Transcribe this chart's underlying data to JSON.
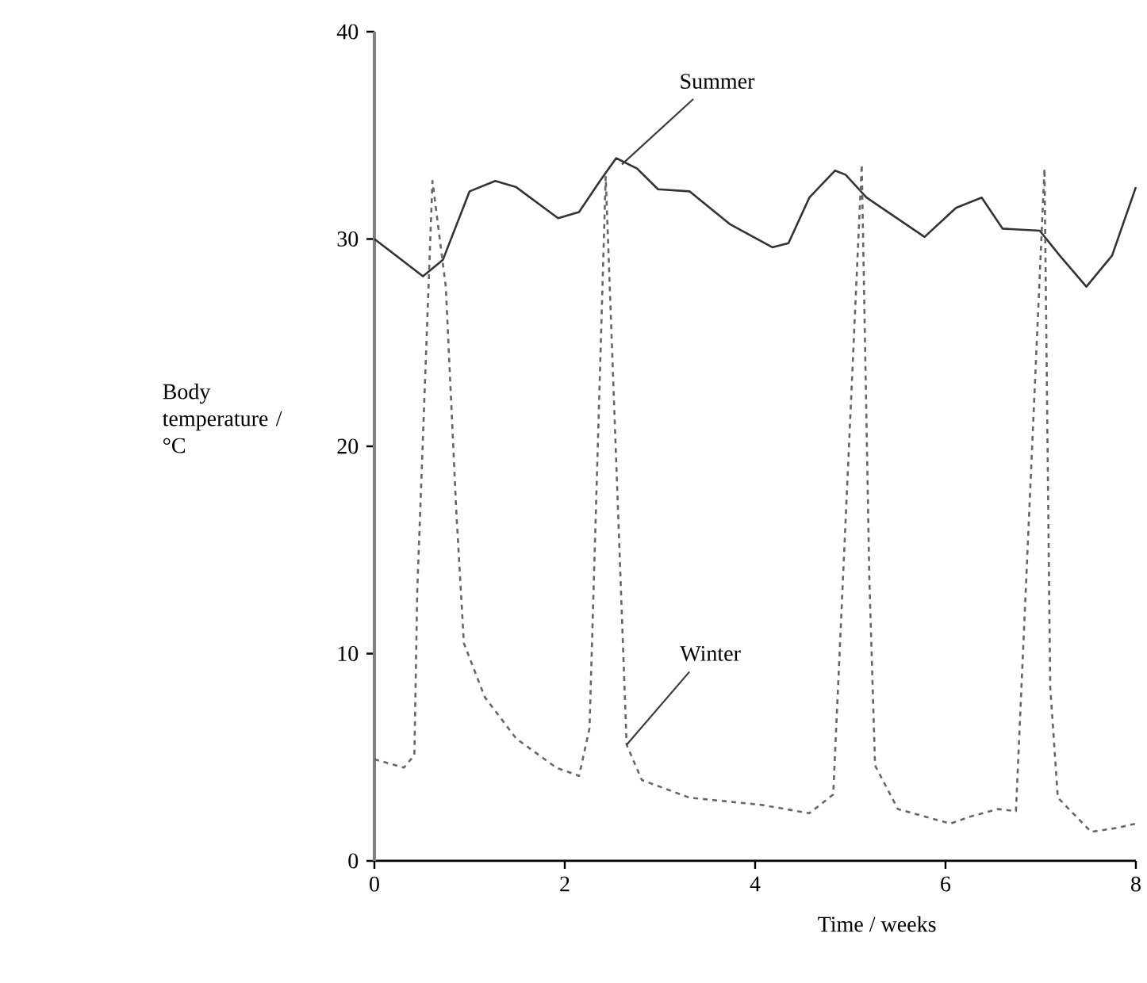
{
  "chart_data": {
    "type": "line",
    "xlabel": "Time / weeks",
    "ylabel": "Body temperature / °C",
    "xlim": [
      0,
      8
    ],
    "ylim": [
      0,
      40
    ],
    "xticks": [
      0,
      2,
      4,
      6,
      8
    ],
    "yticks": [
      0,
      10,
      20,
      30,
      40
    ],
    "grid": false,
    "series": [
      {
        "color": "#333333",
        "line_style": "solid",
        "x": [
          0,
          0.51,
          0.72,
          1.0,
          1.27,
          1.49,
          1.93,
          2.15,
          2.37,
          2.54,
          2.76,
          2.98,
          3.31,
          3.74,
          4.18,
          4.35,
          4.57,
          4.84,
          4.95,
          5.17,
          5.78,
          6.11,
          6.38,
          6.6,
          6.99,
          7.2,
          7.48,
          7.75,
          8.0
        ],
        "values": [
          30.0,
          28.2,
          29.0,
          32.3,
          32.8,
          32.5,
          31.0,
          31.3,
          32.8,
          33.9,
          33.4,
          32.4,
          32.3,
          30.7,
          29.6,
          29.8,
          32.0,
          33.3,
          33.1,
          32.0,
          30.1,
          31.5,
          32.0,
          30.5,
          30.4,
          29.2,
          27.7,
          29.2,
          32.5
        ]
      },
      {
        "color": "#666666",
        "line_style": "dashed",
        "x": [
          0,
          0.31,
          0.42,
          0.45,
          0.61,
          0.75,
          0.86,
          0.94,
          1.16,
          1.49,
          1.91,
          2.15,
          2.26,
          2.43,
          2.57,
          2.65,
          2.81,
          3.31,
          4.07,
          4.57,
          4.82,
          5.12,
          5.2,
          5.26,
          5.5,
          6.05,
          6.27,
          6.55,
          6.74,
          7.04,
          7.1,
          7.18,
          7.53,
          7.81,
          8.0
        ],
        "values": [
          4.9,
          4.5,
          5.1,
          13.0,
          32.8,
          27.7,
          16.9,
          10.5,
          7.9,
          5.9,
          4.5,
          4.1,
          6.4,
          33.0,
          15.6,
          5.6,
          3.9,
          3.05,
          2.7,
          2.3,
          3.2,
          33.6,
          13.6,
          4.6,
          2.5,
          1.8,
          2.15,
          2.5,
          2.4,
          33.4,
          8.4,
          3.05,
          1.4,
          1.6,
          1.8
        ]
      }
    ],
    "annotations": [
      {
        "text": "Summer",
        "x": 2.6,
        "y": 33.6
      },
      {
        "text": "Winter",
        "x": 2.65,
        "y": 5.6
      }
    ]
  }
}
